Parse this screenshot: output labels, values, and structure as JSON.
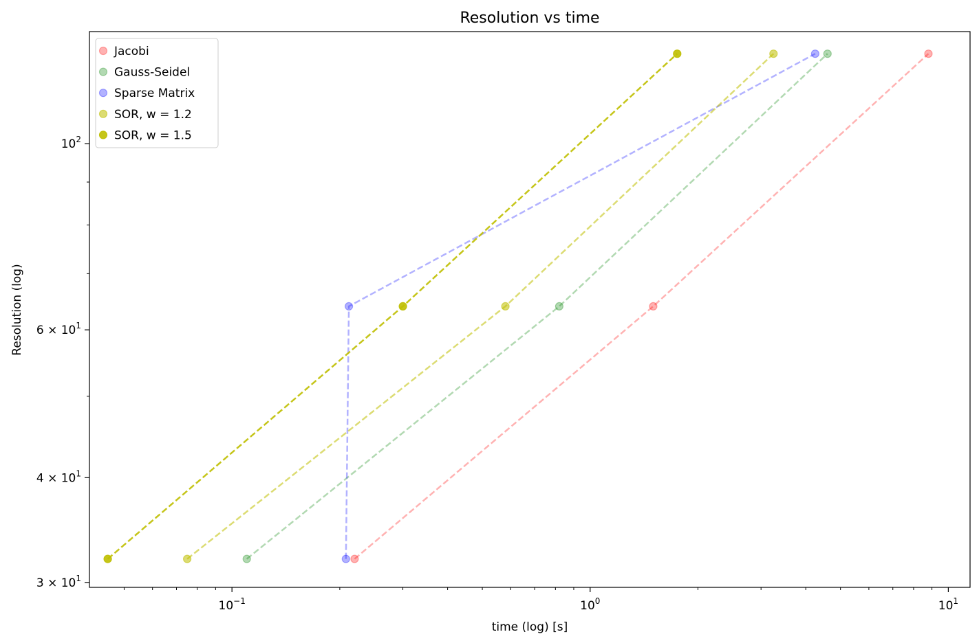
{
  "chart_data": {
    "type": "line",
    "title": "Resolution vs time",
    "xlabel": "time (log) [s]",
    "ylabel": "Resolution (log)",
    "xscale": "log",
    "yscale": "log",
    "xlim": [
      0.04,
      11.5
    ],
    "ylim": [
      29.6,
      136
    ],
    "x_ticks": [
      {
        "value": 0.1,
        "base": "10",
        "exp": "−1"
      },
      {
        "value": 1,
        "base": "10",
        "exp": "0"
      },
      {
        "value": 10,
        "base": "10",
        "exp": "1"
      }
    ],
    "y_ticks": [
      {
        "value": 30,
        "mant": "3",
        "base": "10",
        "exp": "1"
      },
      {
        "value": 40,
        "mant": "4",
        "base": "10",
        "exp": "1"
      },
      {
        "value": 60,
        "mant": "6",
        "base": "10",
        "exp": "1"
      },
      {
        "value": 100,
        "mant": "",
        "base": "10",
        "exp": "2"
      }
    ],
    "grid": false,
    "legend_position": "top-left",
    "series": [
      {
        "name": "Jacobi",
        "color": "#ff0000",
        "alpha": 0.3,
        "x": [
          0.22,
          1.5,
          8.8
        ],
        "y": [
          32,
          64,
          128
        ]
      },
      {
        "name": "Gauss-Seidel",
        "color": "#008000",
        "alpha": 0.3,
        "x": [
          0.11,
          0.82,
          4.6
        ],
        "y": [
          32,
          64,
          128
        ]
      },
      {
        "name": "Sparse Matrix",
        "color": "#0000ff",
        "alpha": 0.3,
        "x": [
          0.208,
          0.212,
          4.25
        ],
        "y": [
          32,
          64,
          128
        ]
      },
      {
        "name": "SOR, w = 1.2",
        "color": "#bfbf00",
        "alpha": 0.55,
        "x": [
          0.075,
          0.58,
          3.25
        ],
        "y": [
          32,
          64,
          128
        ]
      },
      {
        "name": "SOR, w = 1.5",
        "color": "#bfbf00",
        "alpha": 0.9,
        "x": [
          0.045,
          0.3,
          1.75
        ],
        "y": [
          32,
          64,
          128
        ]
      }
    ]
  }
}
